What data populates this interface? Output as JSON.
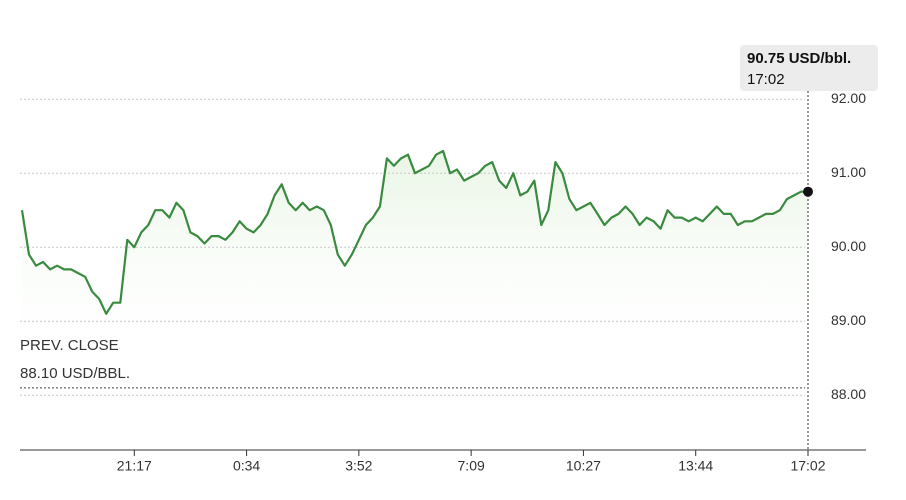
{
  "chart_data": {
    "type": "line",
    "series": [
      {
        "color": "#3a8a3f",
        "values": [
          90.5,
          89.9,
          89.75,
          89.8,
          89.7,
          89.75,
          89.7,
          89.7,
          89.65,
          89.6,
          89.4,
          89.3,
          89.1,
          89.25,
          89.25,
          90.1,
          90.0,
          90.2,
          90.3,
          90.5,
          90.5,
          90.4,
          90.6,
          90.5,
          90.2,
          90.15,
          90.05,
          90.15,
          90.15,
          90.1,
          90.2,
          90.35,
          90.25,
          90.2,
          90.3,
          90.45,
          90.7,
          90.85,
          90.6,
          90.5,
          90.6,
          90.5,
          90.55,
          90.5,
          90.3,
          89.9,
          89.75,
          89.9,
          90.1,
          90.3,
          90.4,
          90.55,
          91.2,
          91.1,
          91.2,
          91.25,
          91.0,
          91.05,
          91.1,
          91.25,
          91.3,
          91.0,
          91.05,
          90.9,
          90.95,
          91.0,
          91.1,
          91.15,
          90.9,
          90.8,
          91.0,
          90.7,
          90.75,
          90.9,
          90.3,
          90.5,
          91.15,
          91.0,
          90.65,
          90.5,
          90.55,
          90.6,
          90.45,
          90.3,
          90.4,
          90.45,
          90.55,
          90.45,
          90.3,
          90.4,
          90.35,
          90.25,
          90.5,
          90.4,
          90.4,
          90.35,
          90.4,
          90.35,
          90.45,
          90.55,
          90.45,
          90.45,
          90.3,
          90.35,
          90.35,
          90.4,
          90.45,
          90.45,
          90.5,
          90.65,
          90.7,
          90.75,
          90.75
        ]
      }
    ],
    "xlim": [
      0,
      112
    ],
    "xticks": [
      {
        "value": 16,
        "label": "21:17"
      },
      {
        "value": 32,
        "label": "0:34"
      },
      {
        "value": 48,
        "label": "3:52"
      },
      {
        "value": 64,
        "label": "7:09"
      },
      {
        "value": 80,
        "label": "10:27"
      },
      {
        "value": 96,
        "label": "13:44"
      },
      {
        "value": 112,
        "label": "17:02"
      }
    ],
    "ylim": [
      87.26,
      92.8
    ],
    "yticks": [
      {
        "value": 88,
        "label": "88.00"
      },
      {
        "value": 89,
        "label": "89.00"
      },
      {
        "value": 90,
        "label": "90.00"
      },
      {
        "value": 91,
        "label": "91.00"
      },
      {
        "value": 92,
        "label": "92.00"
      }
    ],
    "grid": true,
    "prev_close_title": "PREV. CLOSE",
    "prev_close": {
      "value": 88.1,
      "label": "88.10 USD/BBL."
    },
    "tooltip": {
      "price": "90.75 USD/bbl.",
      "time": "17:02"
    }
  }
}
